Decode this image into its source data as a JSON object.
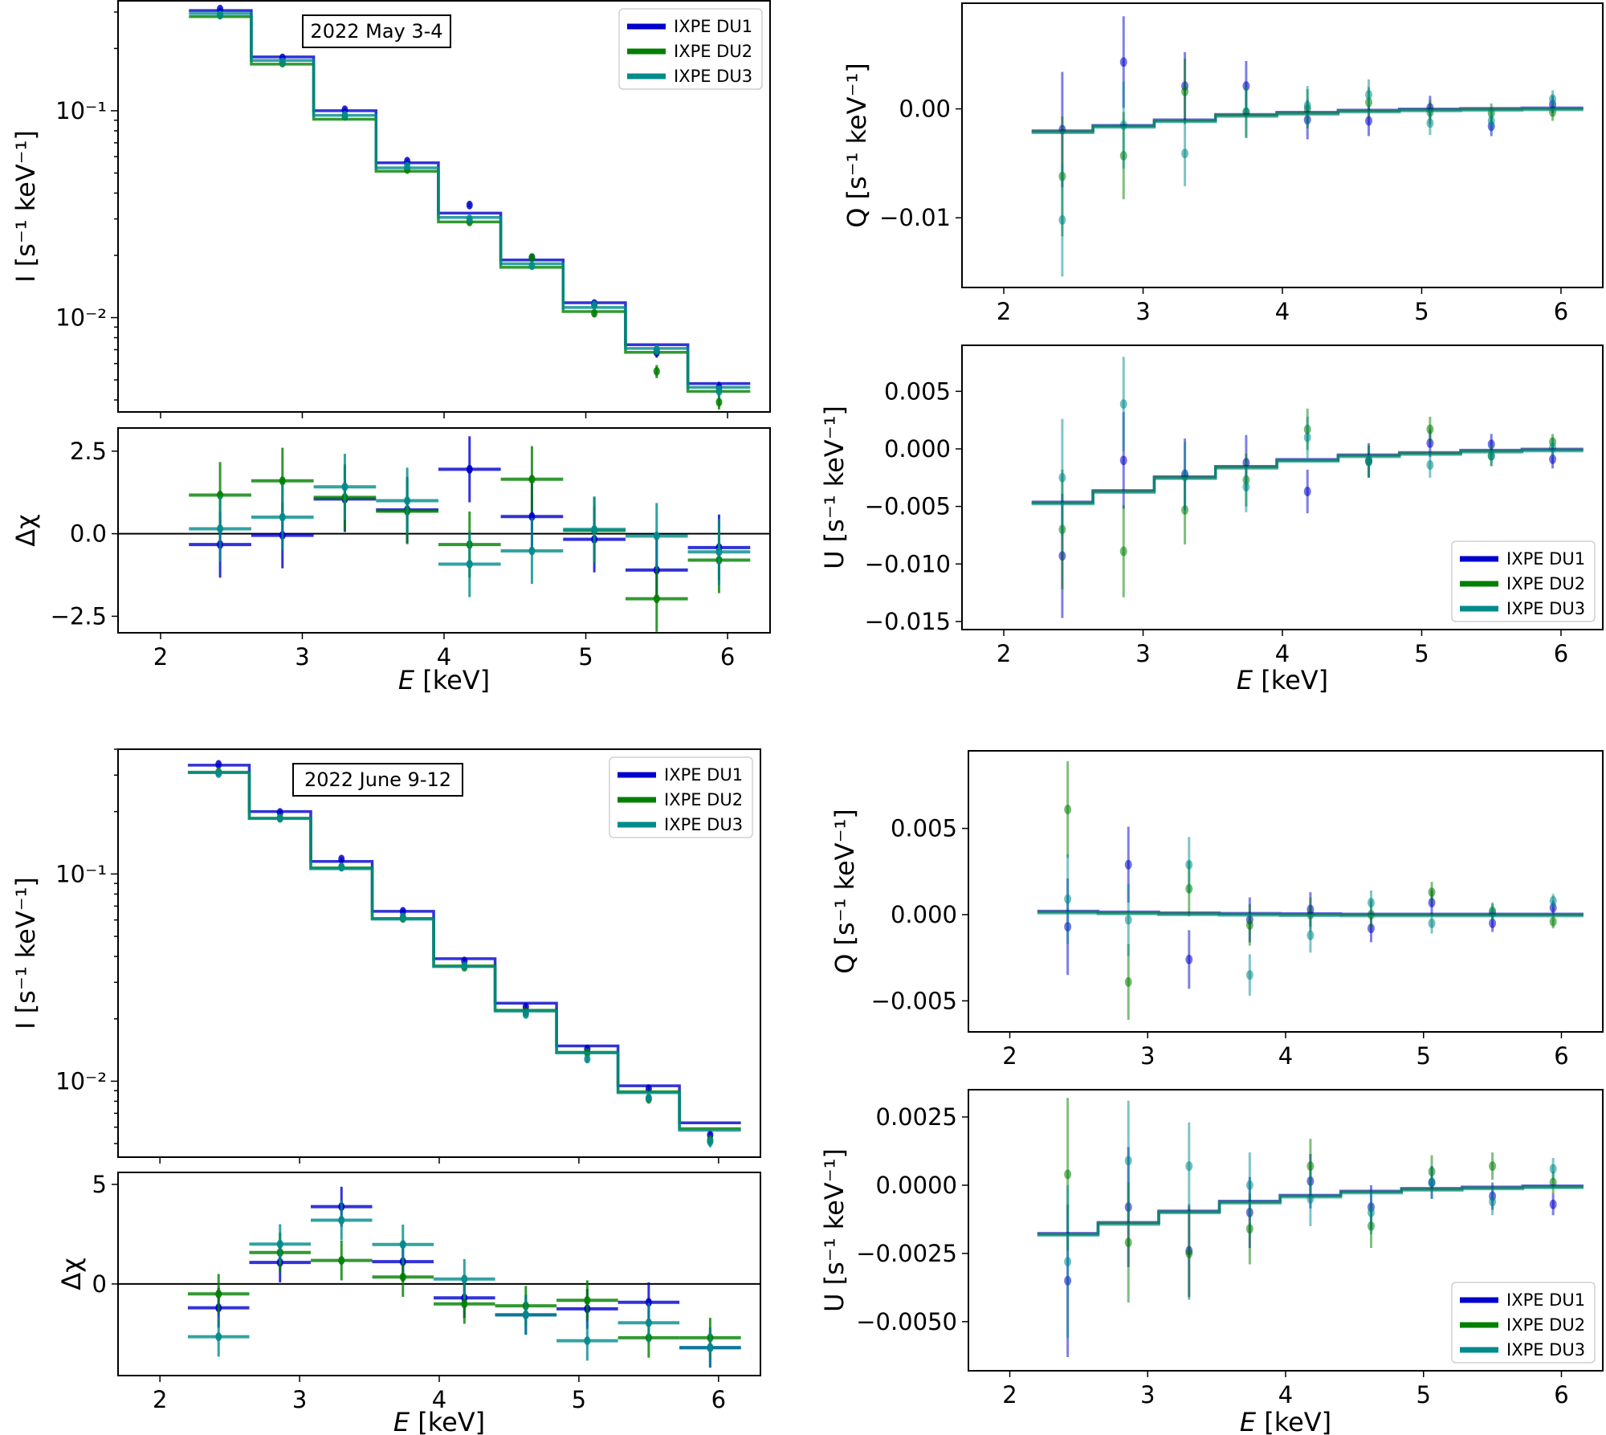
{
  "figure": {
    "colors": {
      "DU1": "#0000cd",
      "DU2": "#008000",
      "DU3": "#008b8b"
    },
    "legend_labels": [
      "IXPE DU1",
      "IXPE DU2",
      "IXPE DU3"
    ]
  },
  "chart_data": [
    {
      "id": "may-I",
      "type": "line",
      "title": "",
      "annotation": "2022 May 3-4",
      "xlabel": "",
      "ylabel": "I [s⁻¹ keV⁻¹]",
      "yscale": "log",
      "xlim": [
        1.7,
        6.3
      ],
      "ylim": [
        0.0035,
        0.34
      ],
      "ytick_labels": [
        {
          "value": 0.1,
          "label": "10⁻¹"
        },
        {
          "value": 0.01,
          "label": "10⁻²"
        }
      ],
      "legend": "top-right",
      "bin_edges": [
        2.2,
        2.64,
        3.08,
        3.52,
        3.96,
        4.4,
        4.84,
        5.28,
        5.72,
        6.16
      ],
      "x": [
        2.42,
        2.86,
        3.3,
        3.74,
        4.18,
        4.62,
        5.06,
        5.5,
        5.94
      ],
      "series": [
        {
          "name": "IXPE DU1",
          "model": [
            0.305,
            0.182,
            0.1,
            0.056,
            0.032,
            0.019,
            0.0118,
            0.0074,
            0.0048
          ],
          "data": [
            0.31,
            0.18,
            0.101,
            0.057,
            0.035,
            0.0195,
            0.0117,
            0.0068,
            0.0046
          ],
          "err": [
            0.004,
            0.003,
            0.002,
            0.0012,
            0.0008,
            0.0006,
            0.0004,
            0.0004,
            0.0003
          ]
        },
        {
          "name": "IXPE DU2",
          "model": [
            0.285,
            0.168,
            0.091,
            0.051,
            0.029,
            0.0175,
            0.0107,
            0.0068,
            0.0044
          ],
          "data": [
            0.29,
            0.17,
            0.094,
            0.052,
            0.029,
            0.0195,
            0.0105,
            0.0055,
            0.0039
          ],
          "err": [
            0.004,
            0.003,
            0.002,
            0.0012,
            0.0008,
            0.0006,
            0.0004,
            0.0004,
            0.0003
          ]
        },
        {
          "name": "IXPE DU3",
          "model": [
            0.295,
            0.175,
            0.095,
            0.053,
            0.0305,
            0.0182,
            0.0112,
            0.0071,
            0.0046
          ],
          "data": [
            0.29,
            0.172,
            0.095,
            0.054,
            0.03,
            0.0178,
            0.0115,
            0.007,
            0.0044
          ],
          "err": [
            0.004,
            0.003,
            0.002,
            0.0012,
            0.0008,
            0.0006,
            0.0004,
            0.0004,
            0.0003
          ]
        }
      ]
    },
    {
      "id": "may-resid",
      "type": "scatter",
      "xlabel": "E [keV]",
      "ylabel": "Δχ",
      "xlim": [
        1.7,
        6.3
      ],
      "ylim": [
        -3.0,
        3.2
      ],
      "yticks": [
        -2.5,
        0.0,
        2.5
      ],
      "ytick_labels": [
        "−2.5",
        "0.0",
        "2.5"
      ],
      "xticks": [
        2,
        3,
        4,
        5,
        6
      ],
      "xtick_labels": [
        "2",
        "3",
        "4",
        "5",
        "6"
      ],
      "bin_edges": [
        2.2,
        2.64,
        3.08,
        3.52,
        3.96,
        4.4,
        4.84,
        5.28,
        5.72,
        6.16
      ],
      "x": [
        2.42,
        2.86,
        3.3,
        3.74,
        4.18,
        4.62,
        5.06,
        5.5,
        5.94
      ],
      "series": [
        {
          "name": "IXPE DU1",
          "values": [
            -0.33,
            -0.05,
            1.05,
            0.72,
            1.95,
            0.52,
            -0.17,
            -1.1,
            -0.42
          ]
        },
        {
          "name": "IXPE DU2",
          "values": [
            1.17,
            1.6,
            1.1,
            0.68,
            -0.33,
            1.65,
            0.1,
            -1.97,
            -0.8
          ]
        },
        {
          "name": "IXPE DU3",
          "values": [
            0.15,
            0.5,
            1.42,
            1.0,
            -0.92,
            -0.52,
            0.13,
            -0.07,
            -0.55
          ]
        }
      ]
    },
    {
      "id": "may-Q",
      "type": "scatter",
      "xlabel": "",
      "ylabel": "Q [s⁻¹ keV⁻¹]",
      "xlim": [
        1.7,
        6.3
      ],
      "ylim": [
        -0.0164,
        0.0097
      ],
      "yticks": [
        -0.01,
        0.0
      ],
      "ytick_labels": [
        "−0.01",
        "0.00"
      ],
      "xticks": [
        2,
        3,
        4,
        5,
        6
      ],
      "xtick_labels": [
        "2",
        "3",
        "4",
        "5",
        "6"
      ],
      "bin_edges": [
        2.2,
        2.64,
        3.08,
        3.52,
        3.96,
        4.4,
        4.84,
        5.28,
        5.72,
        6.16
      ],
      "x": [
        2.42,
        2.86,
        3.3,
        3.74,
        4.18,
        4.62,
        5.06,
        5.5,
        5.94
      ],
      "model": [
        -0.0021,
        -0.0016,
        -0.0011,
        -0.0006,
        -0.0004,
        -0.0002,
        -0.0001,
        -5e-05,
        0.0
      ],
      "series": [
        {
          "name": "IXPE DU1",
          "values": [
            -0.0019,
            0.0043,
            0.0021,
            0.0021,
            -0.001,
            -0.0011,
            0.0001,
            -0.0016,
            0.0004
          ],
          "err": [
            0.0053,
            0.0042,
            0.0031,
            0.0023,
            0.0018,
            0.0014,
            0.0011,
            0.0009,
            0.0008
          ]
        },
        {
          "name": "IXPE DU2",
          "values": [
            -0.0062,
            -0.0043,
            0.0016,
            -0.0003,
            0.0,
            0.0006,
            -0.0003,
            -0.0004,
            -0.0003
          ],
          "err": [
            0.0055,
            0.004,
            0.003,
            0.0024,
            0.0018,
            0.0014,
            0.0011,
            0.0009,
            0.0008
          ]
        },
        {
          "name": "IXPE DU3",
          "values": [
            -0.0102,
            -0.0015,
            -0.0041,
            -0.0003,
            0.0003,
            0.0013,
            -0.0013,
            -0.0011,
            0.0009
          ],
          "err": [
            0.0052,
            0.004,
            0.003,
            0.0023,
            0.0018,
            0.0014,
            0.0011,
            0.0009,
            0.0008
          ]
        }
      ]
    },
    {
      "id": "may-U",
      "type": "scatter",
      "xlabel": "E [keV]",
      "ylabel": "U [s⁻¹ keV⁻¹]",
      "xlim": [
        1.7,
        6.3
      ],
      "ylim": [
        -0.0157,
        0.009
      ],
      "yticks": [
        -0.015,
        -0.01,
        -0.005,
        0.0,
        0.005
      ],
      "ytick_labels": [
        "−0.015",
        "−0.010",
        "−0.005",
        "0.000",
        "0.005"
      ],
      "xticks": [
        2,
        3,
        4,
        5,
        6
      ],
      "xtick_labels": [
        "2",
        "3",
        "4",
        "5",
        "6"
      ],
      "legend": "bottom-right",
      "bin_edges": [
        2.2,
        2.64,
        3.08,
        3.52,
        3.96,
        4.4,
        4.84,
        5.28,
        5.72,
        6.16
      ],
      "x": [
        2.42,
        2.86,
        3.3,
        3.74,
        4.18,
        4.62,
        5.06,
        5.5,
        5.94
      ],
      "model": [
        -0.0047,
        -0.0037,
        -0.0025,
        -0.0016,
        -0.001,
        -0.0006,
        -0.0004,
        -0.0002,
        -0.0001
      ],
      "series": [
        {
          "name": "IXPE DU1",
          "values": [
            -0.0093,
            -0.001,
            -0.0022,
            -0.0012,
            -0.0037,
            -0.001,
            0.0005,
            0.0004,
            -0.0009
          ],
          "err": [
            0.0054,
            0.0042,
            0.0031,
            0.0024,
            0.0019,
            0.0015,
            0.0012,
            0.0009,
            0.0008
          ]
        },
        {
          "name": "IXPE DU2",
          "values": [
            -0.007,
            -0.0089,
            -0.0053,
            -0.0027,
            0.0017,
            -0.0011,
            0.0017,
            -0.0006,
            0.0006
          ],
          "err": [
            0.0052,
            0.004,
            0.003,
            0.0023,
            0.0018,
            0.0014,
            0.0011,
            0.0009,
            0.0007
          ]
        },
        {
          "name": "IXPE DU3",
          "values": [
            -0.0025,
            0.0039,
            -0.0024,
            -0.0033,
            0.001,
            -0.0011,
            -0.0014,
            -0.0006,
            0.0001
          ],
          "err": [
            0.0051,
            0.0041,
            0.003,
            0.0022,
            0.0018,
            0.0014,
            0.0011,
            0.0009,
            0.0008
          ]
        }
      ]
    },
    {
      "id": "june-I",
      "type": "line",
      "annotation": "2022 June 9-12",
      "xlabel": "",
      "ylabel": "I [s⁻¹ keV⁻¹]",
      "yscale": "log",
      "xlim": [
        1.7,
        6.3
      ],
      "ylim": [
        0.0043,
        0.4
      ],
      "ytick_labels": [
        {
          "value": 0.1,
          "label": "10⁻¹"
        },
        {
          "value": 0.01,
          "label": "10⁻²"
        }
      ],
      "legend": "top-right",
      "bin_edges": [
        2.2,
        2.64,
        3.08,
        3.52,
        3.96,
        4.4,
        4.84,
        5.28,
        5.72,
        6.16
      ],
      "x": [
        2.42,
        2.86,
        3.3,
        3.74,
        4.18,
        4.62,
        5.06,
        5.5,
        5.94
      ],
      "series": [
        {
          "name": "IXPE DU1",
          "model": [
            0.335,
            0.2,
            0.115,
            0.066,
            0.039,
            0.0238,
            0.0148,
            0.0095,
            0.0063
          ],
          "data": [
            0.338,
            0.198,
            0.118,
            0.066,
            0.038,
            0.0228,
            0.0143,
            0.0092,
            0.0055
          ],
          "err": [
            0.004,
            0.003,
            0.002,
            0.0013,
            0.0009,
            0.0006,
            0.0005,
            0.0004,
            0.0003
          ]
        },
        {
          "name": "IXPE DU2",
          "model": [
            0.31,
            0.186,
            0.107,
            0.061,
            0.036,
            0.022,
            0.0138,
            0.0089,
            0.0059
          ],
          "data": [
            0.31,
            0.186,
            0.108,
            0.061,
            0.0355,
            0.0215,
            0.0137,
            0.0082,
            0.0052
          ],
          "err": [
            0.004,
            0.003,
            0.002,
            0.0013,
            0.0009,
            0.0006,
            0.0005,
            0.0004,
            0.0003
          ]
        },
        {
          "name": "IXPE DU3",
          "model": [
            0.308,
            0.185,
            0.106,
            0.0605,
            0.0357,
            0.0218,
            0.0137,
            0.0088,
            0.0058
          ],
          "data": [
            0.305,
            0.186,
            0.108,
            0.062,
            0.036,
            0.021,
            0.0128,
            0.0083,
            0.0051
          ],
          "err": [
            0.004,
            0.003,
            0.002,
            0.0013,
            0.0009,
            0.0006,
            0.0005,
            0.0004,
            0.0003
          ]
        }
      ]
    },
    {
      "id": "june-resid",
      "type": "scatter",
      "xlabel": "E [keV]",
      "ylabel": "Δχ",
      "xlim": [
        1.7,
        6.3
      ],
      "ylim": [
        -4.6,
        5.6
      ],
      "yticks": [
        0,
        5
      ],
      "ytick_labels": [
        "0",
        "5"
      ],
      "xticks": [
        2,
        3,
        4,
        5,
        6
      ],
      "xtick_labels": [
        "2",
        "3",
        "4",
        "5",
        "6"
      ],
      "bin_edges": [
        2.2,
        2.64,
        3.08,
        3.52,
        3.96,
        4.4,
        4.84,
        5.28,
        5.72,
        6.16
      ],
      "x": [
        2.42,
        2.86,
        3.3,
        3.74,
        4.18,
        4.62,
        5.06,
        5.5,
        5.94
      ],
      "series": [
        {
          "name": "IXPE DU1",
          "values": [
            -1.2,
            1.08,
            3.88,
            1.12,
            -0.7,
            -1.55,
            -1.25,
            -0.92,
            -3.2
          ]
        },
        {
          "name": "IXPE DU2",
          "values": [
            -0.5,
            1.58,
            1.18,
            0.35,
            -1.0,
            -1.1,
            -0.82,
            -2.7,
            -2.7
          ]
        },
        {
          "name": "IXPE DU3",
          "values": [
            -2.65,
            2.0,
            3.2,
            1.98,
            0.25,
            -1.55,
            -2.85,
            -1.95,
            -3.2
          ]
        }
      ]
    },
    {
      "id": "june-Q",
      "type": "scatter",
      "xlabel": "",
      "ylabel": "Q [s⁻¹ keV⁻¹]",
      "xlim": [
        1.7,
        6.3
      ],
      "ylim": [
        -0.0068,
        0.0095
      ],
      "yticks": [
        -0.005,
        0.0,
        0.005
      ],
      "ytick_labels": [
        "−0.005",
        "0.000",
        "0.005"
      ],
      "xticks": [
        2,
        3,
        4,
        5,
        6
      ],
      "xtick_labels": [
        "2",
        "3",
        "4",
        "5",
        "6"
      ],
      "bin_edges": [
        2.2,
        2.64,
        3.08,
        3.52,
        3.96,
        4.4,
        4.84,
        5.28,
        5.72,
        6.16
      ],
      "x": [
        2.42,
        2.86,
        3.3,
        3.74,
        4.18,
        4.62,
        5.06,
        5.5,
        5.94
      ],
      "model": [
        0.00015,
        0.0001,
        5e-05,
        2e-05,
        0.0,
        -2e-05,
        -2e-05,
        -2e-05,
        -2e-05
      ],
      "series": [
        {
          "name": "IXPE DU1",
          "values": [
            -0.0007,
            0.0029,
            -0.0026,
            -0.0003,
            0.0003,
            -0.0008,
            0.0007,
            -0.0005,
            0.0004
          ],
          "err": [
            0.0028,
            0.0022,
            0.0017,
            0.0013,
            0.001,
            0.0008,
            0.0007,
            0.0005,
            0.0004
          ]
        },
        {
          "name": "IXPE DU2",
          "values": [
            0.0061,
            -0.0039,
            0.0015,
            -0.0006,
            0.0,
            0.0,
            0.0013,
            0.0002,
            -0.0004
          ],
          "err": [
            0.0028,
            0.0022,
            0.0016,
            0.0012,
            0.001,
            0.0008,
            0.0006,
            0.0005,
            0.0004
          ]
        },
        {
          "name": "IXPE DU3",
          "values": [
            0.0009,
            -0.0003,
            0.0029,
            -0.0035,
            -0.0012,
            0.0007,
            -0.0005,
            0.0001,
            0.0008
          ],
          "err": [
            0.0026,
            0.0021,
            0.0016,
            0.0012,
            0.001,
            0.0007,
            0.0006,
            0.0005,
            0.0004
          ]
        }
      ]
    },
    {
      "id": "june-U",
      "type": "scatter",
      "xlabel": "E [keV]",
      "ylabel": "U [s⁻¹ keV⁻¹]",
      "xlim": [
        1.7,
        6.3
      ],
      "ylim": [
        -0.0068,
        0.0035
      ],
      "yticks": [
        -0.005,
        -0.0025,
        0.0,
        0.0025
      ],
      "ytick_labels": [
        "−0.0050",
        "−0.0025",
        "0.0000",
        "0.0025"
      ],
      "xticks": [
        2,
        3,
        4,
        5,
        6
      ],
      "xtick_labels": [
        "2",
        "3",
        "4",
        "5",
        "6"
      ],
      "legend": "bottom-right",
      "bin_edges": [
        2.2,
        2.64,
        3.08,
        3.52,
        3.96,
        4.4,
        4.84,
        5.28,
        5.72,
        6.16
      ],
      "x": [
        2.42,
        2.86,
        3.3,
        3.74,
        4.18,
        4.62,
        5.06,
        5.5,
        5.94
      ],
      "model": [
        -0.0018,
        -0.0014,
        -0.00098,
        -0.00062,
        -0.0004,
        -0.00025,
        -0.00015,
        -0.0001,
        -6e-05
      ],
      "series": [
        {
          "name": "IXPE DU1",
          "values": [
            -0.0035,
            -0.0008,
            -0.0024,
            -0.001,
            0.00015,
            -0.0008,
            0.0001,
            -0.0004,
            -0.0007
          ],
          "err": [
            0.0028,
            0.0022,
            0.0017,
            0.0013,
            0.001,
            0.0008,
            0.0006,
            0.0005,
            0.0004
          ]
        },
        {
          "name": "IXPE DU2",
          "values": [
            0.0004,
            -0.0021,
            -0.0025,
            -0.0016,
            0.0007,
            -0.0015,
            0.0005,
            0.0007,
            0.0001
          ],
          "err": [
            0.0028,
            0.0022,
            0.0017,
            0.0013,
            0.001,
            0.0008,
            0.0006,
            0.0005,
            0.0004
          ]
        },
        {
          "name": "IXPE DU3",
          "values": [
            -0.0028,
            0.0009,
            0.0007,
            0.0,
            -0.0005,
            -0.001,
            0.0001,
            -0.0006,
            0.0006
          ],
          "err": [
            0.0028,
            0.0022,
            0.0016,
            0.0012,
            0.001,
            0.0008,
            0.0006,
            0.0005,
            0.0004
          ]
        }
      ]
    }
  ]
}
